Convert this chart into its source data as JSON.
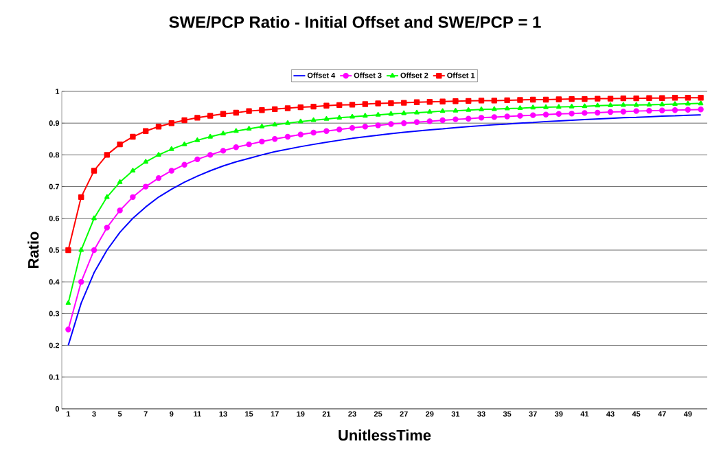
{
  "chart_data": {
    "type": "line",
    "title": "SWE/PCP Ratio - Initial Offset and SWE/PCP = 1",
    "xlabel": "UnitlessTime",
    "ylabel": "Ratio",
    "categories": [
      "1",
      null,
      "3",
      null,
      "5",
      null,
      "7",
      null,
      "9",
      null,
      "11",
      null,
      "13",
      null,
      "15",
      null,
      "17",
      null,
      "19",
      null,
      "21",
      null,
      "23",
      null,
      "25",
      null,
      "27",
      null,
      "29",
      null,
      "31",
      null,
      "33",
      null,
      "35",
      null,
      "37",
      null,
      "39",
      null,
      "41",
      null,
      "43",
      null,
      "45",
      null,
      "47",
      null,
      "49",
      null
    ],
    "series": [
      {
        "name": "Offset 4",
        "color": "#0000ff",
        "marker": "none",
        "values": [
          0.2,
          0.333,
          0.429,
          0.5,
          0.556,
          0.6,
          0.636,
          0.667,
          0.692,
          0.714,
          0.733,
          0.75,
          0.765,
          0.778,
          0.789,
          0.8,
          0.81,
          0.818,
          0.826,
          0.833,
          0.84,
          0.846,
          0.852,
          0.857,
          0.862,
          0.867,
          0.871,
          0.875,
          0.879,
          0.882,
          0.886,
          0.889,
          0.892,
          0.895,
          0.897,
          0.9,
          0.902,
          0.905,
          0.907,
          0.909,
          0.911,
          0.913,
          0.915,
          0.917,
          0.918,
          0.92,
          0.922,
          0.923,
          0.925,
          0.926
        ]
      },
      {
        "name": "Offset 3",
        "color": "#ff00ff",
        "marker": "circle",
        "values": [
          0.25,
          0.4,
          0.5,
          0.571,
          0.625,
          0.667,
          0.7,
          0.727,
          0.75,
          0.769,
          0.786,
          0.8,
          0.813,
          0.824,
          0.833,
          0.842,
          0.85,
          0.857,
          0.864,
          0.87,
          0.875,
          0.88,
          0.885,
          0.889,
          0.893,
          0.897,
          0.9,
          0.903,
          0.906,
          0.909,
          0.912,
          0.914,
          0.917,
          0.919,
          0.921,
          0.923,
          0.925,
          0.927,
          0.929,
          0.93,
          0.932,
          0.933,
          0.935,
          0.936,
          0.938,
          0.939,
          0.94,
          0.941,
          0.942,
          0.943
        ]
      },
      {
        "name": "Offset 2",
        "color": "#00ff00",
        "marker": "triangle",
        "values": [
          0.333,
          0.5,
          0.6,
          0.667,
          0.714,
          0.75,
          0.778,
          0.8,
          0.818,
          0.833,
          0.846,
          0.857,
          0.867,
          0.875,
          0.882,
          0.889,
          0.895,
          0.9,
          0.905,
          0.909,
          0.913,
          0.917,
          0.92,
          0.923,
          0.926,
          0.929,
          0.931,
          0.933,
          0.935,
          0.938,
          0.939,
          0.941,
          0.943,
          0.944,
          0.946,
          0.947,
          0.949,
          0.95,
          0.951,
          0.952,
          0.953,
          0.955,
          0.956,
          0.957,
          0.957,
          0.958,
          0.959,
          0.96,
          0.961,
          0.962
        ]
      },
      {
        "name": "Offset 1",
        "color": "#ff0000",
        "marker": "square",
        "values": [
          0.5,
          0.667,
          0.75,
          0.8,
          0.833,
          0.857,
          0.875,
          0.889,
          0.9,
          0.909,
          0.917,
          0.923,
          0.929,
          0.933,
          0.938,
          0.941,
          0.944,
          0.947,
          0.95,
          0.952,
          0.955,
          0.957,
          0.958,
          0.96,
          0.962,
          0.963,
          0.964,
          0.966,
          0.967,
          0.968,
          0.969,
          0.97,
          0.971,
          0.971,
          0.972,
          0.973,
          0.974,
          0.974,
          0.975,
          0.976,
          0.976,
          0.977,
          0.977,
          0.978,
          0.978,
          0.979,
          0.979,
          0.98,
          0.98,
          0.98
        ]
      }
    ],
    "ylim": [
      0,
      1
    ],
    "yticks": [
      0,
      0.1,
      0.2,
      0.3,
      0.4,
      0.5,
      0.6,
      0.7,
      0.8,
      0.9,
      1
    ],
    "grid": "y",
    "legend": "top",
    "line_style": "solid"
  }
}
